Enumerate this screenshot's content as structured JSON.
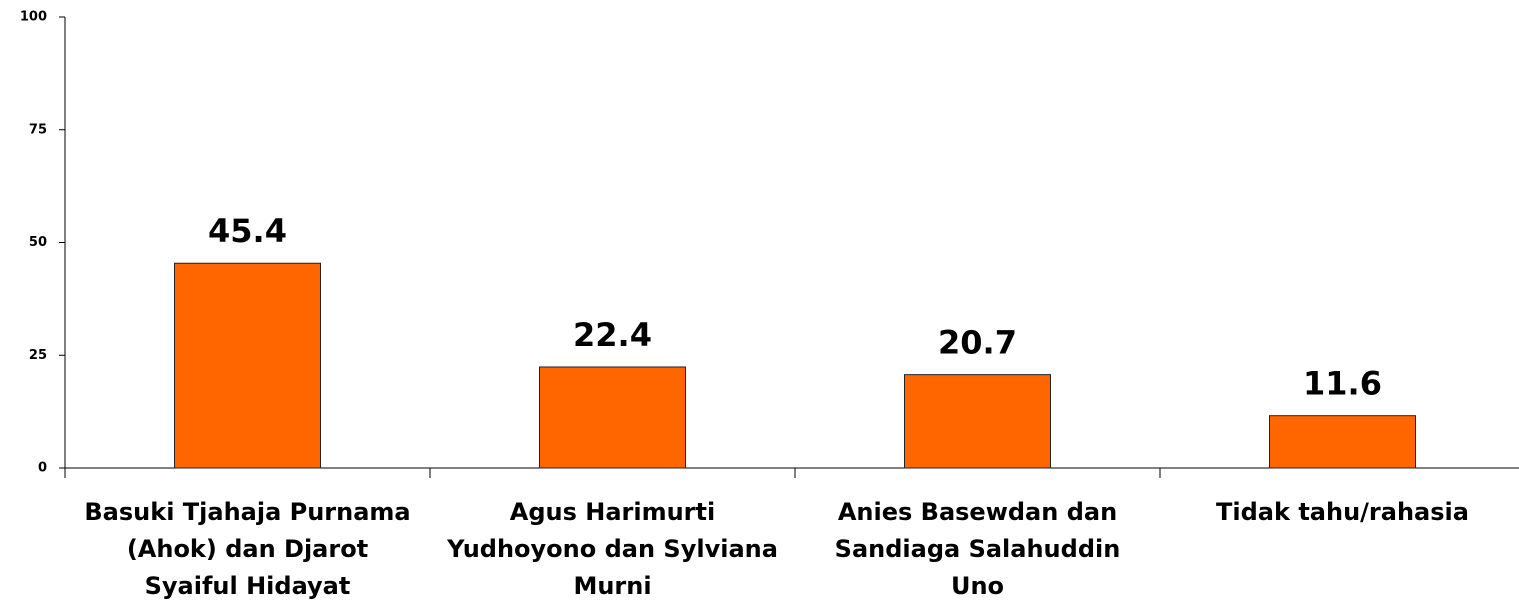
{
  "chart_data": {
    "type": "bar",
    "categories": [
      "Basuki Tjahaja Purnama (Ahok) dan Djarot Syaiful Hidayat",
      "Agus Harimurti Yudhoyono dan Sylviana Murni",
      "Anies Basewdan dan Sandiaga Salahuddin Uno",
      "Tidak tahu/rahasia"
    ],
    "values": [
      45.4,
      22.4,
      20.7,
      11.6
    ],
    "color": "#ff6600",
    "ylim": [
      0,
      100
    ],
    "yticks": [
      0,
      25,
      50,
      75,
      100
    ],
    "grid": false
  }
}
